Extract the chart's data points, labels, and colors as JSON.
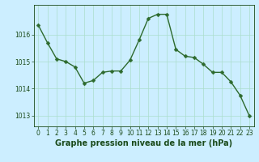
{
  "x": [
    0,
    1,
    2,
    3,
    4,
    5,
    6,
    7,
    8,
    9,
    10,
    11,
    12,
    13,
    14,
    15,
    16,
    17,
    18,
    19,
    20,
    21,
    22,
    23
  ],
  "y": [
    1016.35,
    1015.7,
    1015.1,
    1015.0,
    1014.8,
    1014.2,
    1014.3,
    1014.6,
    1014.65,
    1014.65,
    1015.05,
    1015.8,
    1016.6,
    1016.75,
    1016.75,
    1015.45,
    1015.2,
    1015.15,
    1014.9,
    1014.6,
    1014.6,
    1014.25,
    1013.75,
    1013.0
  ],
  "line_color": "#2d6a2d",
  "marker_color": "#2d6a2d",
  "bg_color": "#cceeff",
  "grid_color": "#aaddcc",
  "xlabel": "Graphe pression niveau de la mer (hPa)",
  "xlabel_color": "#1a4a1a",
  "tick_color": "#1a4a1a",
  "ylim": [
    1012.6,
    1017.1
  ],
  "yticks": [
    1013,
    1014,
    1015,
    1016
  ],
  "xticks": [
    0,
    1,
    2,
    3,
    4,
    5,
    6,
    7,
    8,
    9,
    10,
    11,
    12,
    13,
    14,
    15,
    16,
    17,
    18,
    19,
    20,
    21,
    22,
    23
  ],
  "figsize": [
    3.2,
    2.0
  ],
  "dpi": 100,
  "marker_size": 2.5,
  "line_width": 1.0,
  "tick_fontsize": 5.5,
  "xlabel_fontsize": 7.0
}
